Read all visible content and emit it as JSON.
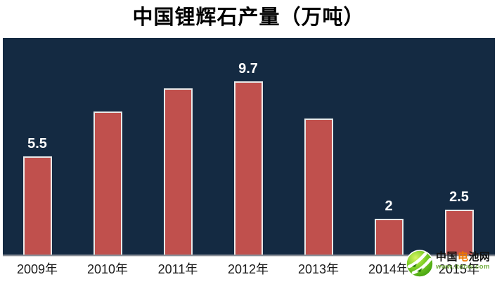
{
  "chart_data": {
    "type": "bar",
    "title": "中国锂辉石产量（万吨）",
    "categories": [
      "2009年",
      "2010年",
      "2011年",
      "2012年",
      "2013年",
      "2014年",
      "2015年"
    ],
    "values": [
      5.5,
      8,
      9.3,
      9.7,
      7.6,
      2,
      2.5
    ],
    "data_labels": [
      "5.5",
      "",
      "",
      "9.7",
      "",
      "2",
      "2.5"
    ],
    "xlabel": "",
    "ylabel": "",
    "ylim": [
      0,
      12.1
    ],
    "grid": false,
    "legend": "none",
    "colors": {
      "bar_fill": "#c0504d",
      "bar_border": "#e9e9e9",
      "plot_background": "#142a42",
      "data_label_text": "#ffffff",
      "axis_label_text": "#1a1a1a",
      "baseline": "#8a8f98"
    }
  },
  "watermark": {
    "icon": "green-globe-swoosh-icon",
    "brand_prefix": "中国",
    "brand_highlight": "电",
    "brand_suffix": "池网",
    "url_text": "www.itdcw.com",
    "colors": {
      "brand": "#111111",
      "highlight": "#ee7700",
      "url": "#76b043"
    }
  }
}
